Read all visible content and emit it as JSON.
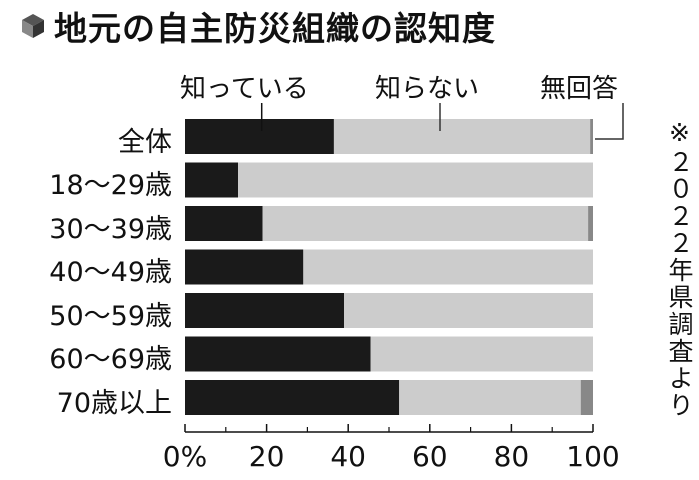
{
  "title": "地元の自主防災組織の認知度",
  "note": "※２０２２年県調査より",
  "colors": {
    "know": "#1a1a1a",
    "dont_know": "#cccccc",
    "no_answer": "#888888"
  },
  "chart_data": {
    "type": "bar",
    "orientation": "horizontal",
    "stacked": true,
    "categories": [
      "全体",
      "18〜29歳",
      "30〜39歳",
      "40〜49歳",
      "50〜59歳",
      "60〜69歳",
      "70歳以上"
    ],
    "series": [
      {
        "name": "知っている",
        "values": [
          36.5,
          13,
          19,
          29,
          39,
          45.5,
          52.5
        ]
      },
      {
        "name": "知らない",
        "values": [
          62.8,
          87,
          79.8,
          71,
          61,
          54.5,
          44.5
        ]
      },
      {
        "name": "無回答",
        "values": [
          0.7,
          0,
          1.2,
          0,
          0,
          0,
          3
        ]
      }
    ],
    "xlim": [
      0,
      100
    ],
    "x_ticks": [
      "0%",
      "20",
      "40",
      "60",
      "80",
      "100"
    ],
    "legend_placement": "top"
  }
}
